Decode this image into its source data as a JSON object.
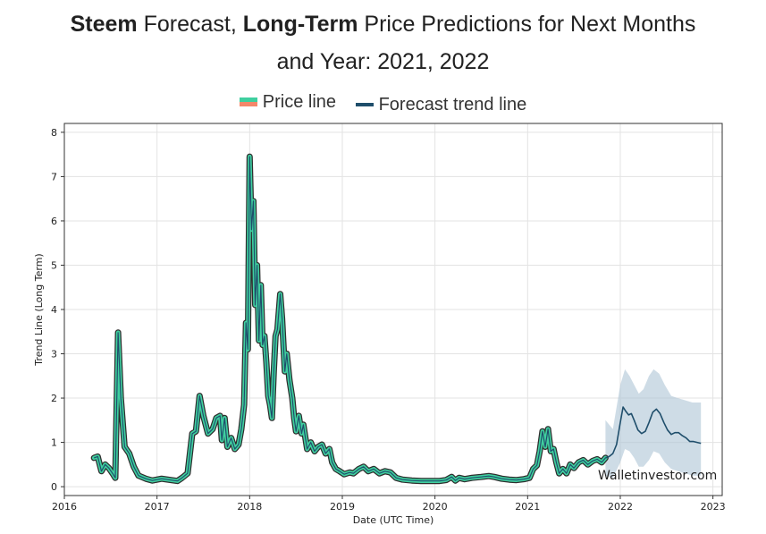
{
  "title": {
    "bold1": "Steem",
    "text1": " Forecast, ",
    "bold2": "Long-Term",
    "text2": " Price Predictions for Next Months",
    "line2": "and Year: 2021, 2022"
  },
  "legend": {
    "price_label": "Price line",
    "forecast_label": "Forecast trend line"
  },
  "watermark": "Walletinvestor.com",
  "colors": {
    "price_fill": "#3fcf9f",
    "price_edge": "#2e2e2e",
    "forecast": "#1f4e6b",
    "band": "#aec4d6",
    "grid": "#e3e3e3"
  },
  "chart_data": {
    "type": "line",
    "xlabel": "Date (UTC Time)",
    "ylabel": "Trend Line (Long Term)",
    "xlim": [
      2016.0,
      2023.1
    ],
    "ylim": [
      -0.2,
      8.2
    ],
    "xticks": [
      2016,
      2017,
      2018,
      2019,
      2020,
      2021,
      2022,
      2023
    ],
    "yticks": [
      0,
      1,
      2,
      3,
      4,
      5,
      6,
      7,
      8
    ],
    "grid": true,
    "legend_position": "top",
    "series": [
      {
        "name": "Price line",
        "points": [
          [
            2016.32,
            0.65
          ],
          [
            2016.36,
            0.68
          ],
          [
            2016.4,
            0.35
          ],
          [
            2016.44,
            0.5
          ],
          [
            2016.48,
            0.42
          ],
          [
            2016.52,
            0.3
          ],
          [
            2016.55,
            0.2
          ],
          [
            2016.58,
            3.48
          ],
          [
            2016.61,
            2.0
          ],
          [
            2016.65,
            0.9
          ],
          [
            2016.7,
            0.75
          ],
          [
            2016.75,
            0.45
          ],
          [
            2016.8,
            0.25
          ],
          [
            2016.88,
            0.18
          ],
          [
            2016.95,
            0.14
          ],
          [
            2017.05,
            0.18
          ],
          [
            2017.15,
            0.15
          ],
          [
            2017.22,
            0.13
          ],
          [
            2017.27,
            0.2
          ],
          [
            2017.33,
            0.3
          ],
          [
            2017.38,
            1.2
          ],
          [
            2017.42,
            1.25
          ],
          [
            2017.46,
            2.05
          ],
          [
            2017.5,
            1.6
          ],
          [
            2017.55,
            1.2
          ],
          [
            2017.6,
            1.3
          ],
          [
            2017.64,
            1.55
          ],
          [
            2017.68,
            1.6
          ],
          [
            2017.7,
            1.05
          ],
          [
            2017.73,
            1.55
          ],
          [
            2017.76,
            0.9
          ],
          [
            2017.8,
            1.1
          ],
          [
            2017.84,
            0.85
          ],
          [
            2017.88,
            0.95
          ],
          [
            2017.91,
            1.3
          ],
          [
            2017.94,
            1.85
          ],
          [
            2017.96,
            3.7
          ],
          [
            2017.98,
            3.1
          ],
          [
            2018.0,
            7.45
          ],
          [
            2018.02,
            5.8
          ],
          [
            2018.04,
            6.45
          ],
          [
            2018.06,
            4.1
          ],
          [
            2018.08,
            5.0
          ],
          [
            2018.1,
            3.3
          ],
          [
            2018.12,
            4.55
          ],
          [
            2018.14,
            3.2
          ],
          [
            2018.16,
            3.4
          ],
          [
            2018.18,
            2.8
          ],
          [
            2018.2,
            2.05
          ],
          [
            2018.22,
            1.85
          ],
          [
            2018.24,
            1.55
          ],
          [
            2018.26,
            2.6
          ],
          [
            2018.28,
            3.4
          ],
          [
            2018.3,
            3.55
          ],
          [
            2018.33,
            4.35
          ],
          [
            2018.35,
            3.8
          ],
          [
            2018.38,
            2.6
          ],
          [
            2018.4,
            3.0
          ],
          [
            2018.43,
            2.4
          ],
          [
            2018.46,
            2.0
          ],
          [
            2018.48,
            1.55
          ],
          [
            2018.5,
            1.25
          ],
          [
            2018.53,
            1.6
          ],
          [
            2018.56,
            1.2
          ],
          [
            2018.58,
            1.4
          ],
          [
            2018.62,
            0.85
          ],
          [
            2018.66,
            1.0
          ],
          [
            2018.7,
            0.8
          ],
          [
            2018.74,
            0.9
          ],
          [
            2018.78,
            0.95
          ],
          [
            2018.82,
            0.75
          ],
          [
            2018.86,
            0.85
          ],
          [
            2018.89,
            0.55
          ],
          [
            2018.93,
            0.4
          ],
          [
            2018.97,
            0.35
          ],
          [
            2019.02,
            0.28
          ],
          [
            2019.08,
            0.32
          ],
          [
            2019.12,
            0.3
          ],
          [
            2019.18,
            0.4
          ],
          [
            2019.23,
            0.45
          ],
          [
            2019.28,
            0.35
          ],
          [
            2019.34,
            0.4
          ],
          [
            2019.4,
            0.3
          ],
          [
            2019.46,
            0.35
          ],
          [
            2019.52,
            0.32
          ],
          [
            2019.58,
            0.2
          ],
          [
            2019.65,
            0.16
          ],
          [
            2019.75,
            0.14
          ],
          [
            2019.85,
            0.13
          ],
          [
            2019.95,
            0.13
          ],
          [
            2020.05,
            0.13
          ],
          [
            2020.12,
            0.15
          ],
          [
            2020.18,
            0.22
          ],
          [
            2020.22,
            0.14
          ],
          [
            2020.26,
            0.2
          ],
          [
            2020.32,
            0.17
          ],
          [
            2020.4,
            0.2
          ],
          [
            2020.5,
            0.22
          ],
          [
            2020.58,
            0.24
          ],
          [
            2020.64,
            0.22
          ],
          [
            2020.72,
            0.18
          ],
          [
            2020.8,
            0.16
          ],
          [
            2020.88,
            0.15
          ],
          [
            2020.96,
            0.17
          ],
          [
            2021.02,
            0.2
          ],
          [
            2021.06,
            0.4
          ],
          [
            2021.1,
            0.48
          ],
          [
            2021.13,
            0.8
          ],
          [
            2021.16,
            1.25
          ],
          [
            2021.19,
            0.9
          ],
          [
            2021.22,
            1.3
          ],
          [
            2021.25,
            0.8
          ],
          [
            2021.28,
            0.85
          ],
          [
            2021.31,
            0.55
          ],
          [
            2021.34,
            0.3
          ],
          [
            2021.38,
            0.4
          ],
          [
            2021.42,
            0.3
          ],
          [
            2021.46,
            0.5
          ],
          [
            2021.5,
            0.42
          ],
          [
            2021.55,
            0.55
          ],
          [
            2021.6,
            0.6
          ],
          [
            2021.65,
            0.5
          ],
          [
            2021.7,
            0.58
          ],
          [
            2021.75,
            0.62
          ],
          [
            2021.8,
            0.55
          ],
          [
            2021.84,
            0.65
          ]
        ]
      },
      {
        "name": "Forecast trend line",
        "points": [
          [
            2021.84,
            0.65
          ],
          [
            2021.88,
            0.68
          ],
          [
            2021.92,
            0.75
          ],
          [
            2021.96,
            0.95
          ],
          [
            2022.0,
            1.45
          ],
          [
            2022.03,
            1.8
          ],
          [
            2022.06,
            1.7
          ],
          [
            2022.09,
            1.62
          ],
          [
            2022.12,
            1.65
          ],
          [
            2022.15,
            1.5
          ],
          [
            2022.19,
            1.28
          ],
          [
            2022.23,
            1.2
          ],
          [
            2022.27,
            1.25
          ],
          [
            2022.31,
            1.45
          ],
          [
            2022.35,
            1.68
          ],
          [
            2022.39,
            1.75
          ],
          [
            2022.43,
            1.65
          ],
          [
            2022.47,
            1.45
          ],
          [
            2022.51,
            1.28
          ],
          [
            2022.55,
            1.18
          ],
          [
            2022.59,
            1.22
          ],
          [
            2022.63,
            1.22
          ],
          [
            2022.67,
            1.15
          ],
          [
            2022.71,
            1.1
          ],
          [
            2022.75,
            1.02
          ],
          [
            2022.79,
            1.02
          ],
          [
            2022.83,
            1.0
          ],
          [
            2022.87,
            0.98
          ]
        ],
        "upper": [
          [
            2021.84,
            1.5
          ],
          [
            2021.92,
            1.3
          ],
          [
            2022.0,
            2.3
          ],
          [
            2022.05,
            2.65
          ],
          [
            2022.1,
            2.5
          ],
          [
            2022.15,
            2.3
          ],
          [
            2022.2,
            2.1
          ],
          [
            2022.25,
            2.2
          ],
          [
            2022.31,
            2.5
          ],
          [
            2022.36,
            2.65
          ],
          [
            2022.42,
            2.55
          ],
          [
            2022.48,
            2.3
          ],
          [
            2022.55,
            2.05
          ],
          [
            2022.62,
            2.0
          ],
          [
            2022.7,
            1.95
          ],
          [
            2022.78,
            1.9
          ],
          [
            2022.87,
            1.9
          ]
        ],
        "lower": [
          [
            2021.84,
            0.25
          ],
          [
            2021.92,
            0.2
          ],
          [
            2022.0,
            0.55
          ],
          [
            2022.05,
            0.85
          ],
          [
            2022.1,
            0.8
          ],
          [
            2022.15,
            0.65
          ],
          [
            2022.2,
            0.45
          ],
          [
            2022.25,
            0.45
          ],
          [
            2022.31,
            0.6
          ],
          [
            2022.36,
            0.8
          ],
          [
            2022.42,
            0.75
          ],
          [
            2022.48,
            0.55
          ],
          [
            2022.55,
            0.4
          ],
          [
            2022.62,
            0.35
          ],
          [
            2022.7,
            0.3
          ],
          [
            2022.78,
            0.25
          ],
          [
            2022.87,
            0.25
          ]
        ]
      }
    ]
  }
}
